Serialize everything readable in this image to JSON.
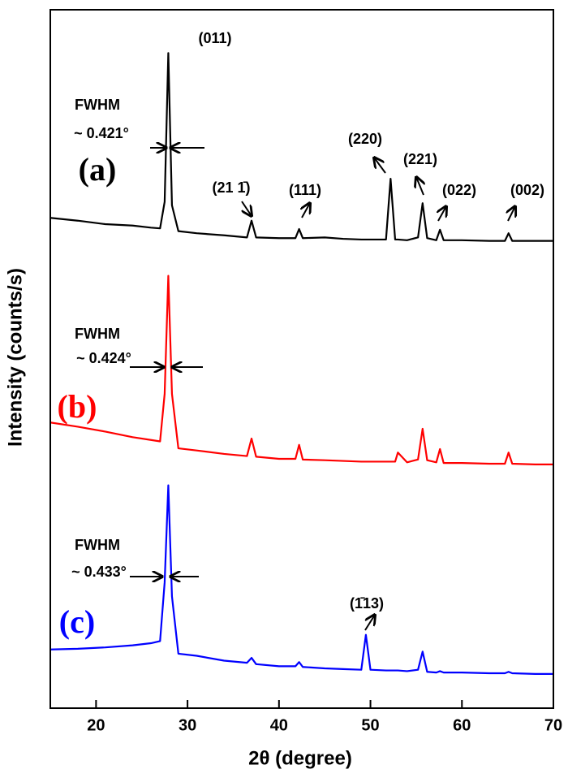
{
  "chart_data": {
    "type": "line",
    "xlabel": "2θ (degree)",
    "ylabel": "Intensity (counts/s)",
    "xlim": [
      15,
      70
    ],
    "xticks": [
      20,
      30,
      40,
      50,
      60,
      70
    ],
    "ylim": [
      0,
      100
    ],
    "x": [
      15,
      18,
      21,
      24,
      26,
      27,
      27.5,
      27.9,
      28.3,
      29,
      31,
      34,
      36.5,
      37,
      37.5,
      40,
      41.8,
      42.2,
      42.6,
      45,
      47,
      49,
      49.5,
      50,
      51.7,
      52.2,
      52.7,
      53,
      54,
      55.2,
      55.7,
      56.2,
      57.2,
      57.6,
      58,
      60,
      63,
      64.7,
      65.1,
      65.5,
      68,
      70
    ],
    "series": [
      {
        "name": "(a)",
        "color": "#000000",
        "values": [
          70.2,
          69.8,
          69.3,
          69.1,
          68.8,
          68.7,
          72.5,
          93.8,
          72.0,
          68.3,
          68.0,
          67.7,
          67.4,
          69.8,
          67.4,
          67.3,
          67.3,
          68.6,
          67.3,
          67.4,
          67.2,
          67.1,
          67.1,
          67.1,
          67.1,
          75.8,
          67.1,
          67.1,
          67.0,
          67.4,
          72.3,
          67.3,
          67.0,
          68.5,
          67.0,
          67.0,
          66.9,
          66.9,
          68.0,
          66.9,
          66.9,
          66.9
        ]
      },
      {
        "name": "(b)",
        "color": "#ff0000",
        "values": [
          40.9,
          40.3,
          39.6,
          38.8,
          38.4,
          38.2,
          45,
          61.9,
          45,
          37.2,
          36.9,
          36.4,
          36.1,
          38.6,
          36.0,
          35.7,
          35.7,
          37.7,
          35.6,
          35.5,
          35.4,
          35.3,
          35.3,
          35.3,
          35.3,
          35.3,
          35.3,
          36.6,
          35.2,
          35.6,
          40.0,
          35.5,
          35.2,
          37.1,
          35.1,
          35.1,
          35.0,
          35.0,
          36.6,
          35.0,
          34.9,
          34.9
        ]
      },
      {
        "name": "(c)",
        "color": "#0000ff",
        "values": [
          8.4,
          8.5,
          8.7,
          9.0,
          9.3,
          9.6,
          18,
          31.9,
          16,
          7.8,
          7.5,
          6.8,
          6.5,
          7.2,
          6.3,
          6.0,
          6.0,
          6.6,
          5.9,
          5.7,
          5.6,
          5.5,
          10.5,
          5.5,
          5.4,
          5.4,
          5.4,
          5.4,
          5.3,
          5.5,
          8.1,
          5.2,
          5.1,
          5.3,
          5.1,
          5.1,
          5.0,
          5.0,
          5.2,
          5.0,
          4.9,
          4.9
        ]
      }
    ],
    "annotations": [
      "(011)",
      "FWHM",
      "~ 0.421°",
      "(21 1̄)",
      "(111)",
      "(220)",
      "(221)",
      "(022)",
      "(002)",
      "FWHM",
      "~ 0.424°",
      "FWHM",
      "~ 0.433°",
      "(1̄13)"
    ]
  }
}
